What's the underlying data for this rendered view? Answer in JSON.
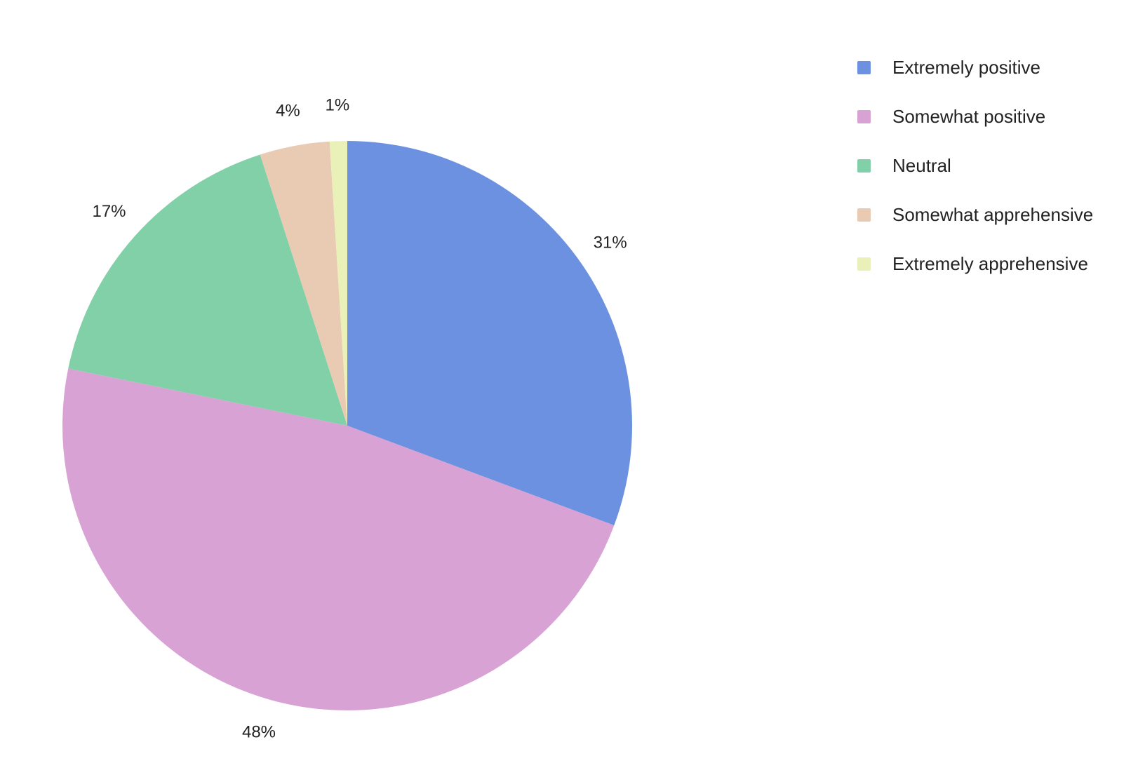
{
  "chart_data": {
    "type": "pie",
    "title": "",
    "categories": [
      "Extremely positive",
      "Somewhat positive",
      "Neutral",
      "Somewhat apprehensive",
      "Extremely apprehensive"
    ],
    "values": [
      31,
      48,
      17,
      4,
      1
    ],
    "labels": [
      "31%",
      "48%",
      "17%",
      "4%",
      "1%"
    ],
    "colors": [
      "#6b91e0",
      "#d8a2d4",
      "#82d0a8",
      "#e9cbb4",
      "#e9f1b9"
    ],
    "start_angle": "12 o'clock",
    "direction": "clockwise",
    "legend_position": "top-right"
  },
  "legend": {
    "items": [
      {
        "label": "Extremely positive",
        "color": "#6b91e0"
      },
      {
        "label": "Somewhat positive",
        "color": "#d8a2d4"
      },
      {
        "label": "Neutral",
        "color": "#82d0a8"
      },
      {
        "label": "Somewhat apprehensive",
        "color": "#e9cbb4"
      },
      {
        "label": "Extremely apprehensive",
        "color": "#e9f1b9"
      }
    ]
  }
}
